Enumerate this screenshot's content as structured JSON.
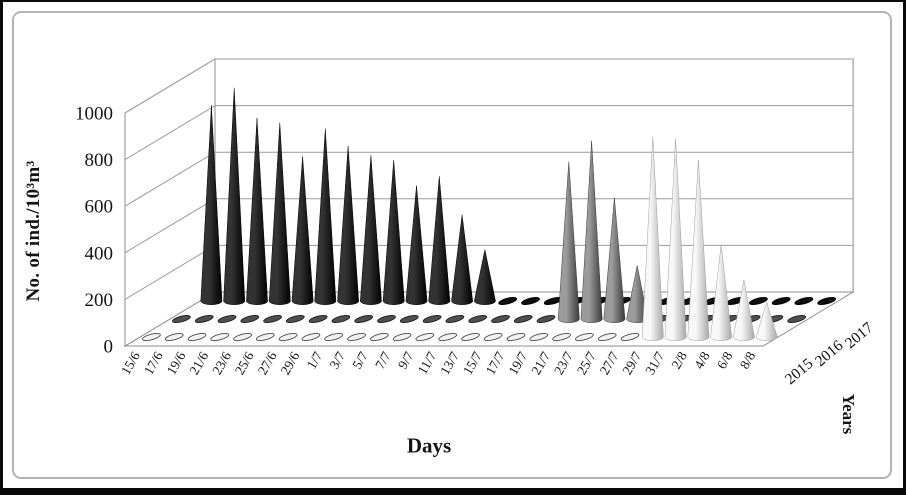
{
  "chart_data": {
    "type": "bar",
    "variant": "3d-cone-columns",
    "title": "",
    "xlabel": "Days",
    "ylabel": "No. of ind./10³m³",
    "zlabel": "Years",
    "categories": [
      "15/6",
      "17/6",
      "19/6",
      "21/6",
      "23/6",
      "25/6",
      "27/6",
      "29/6",
      "1/7",
      "3/7",
      "5/7",
      "7/7",
      "9/7",
      "11/7",
      "13/7",
      "15/7",
      "17/7",
      "19/7",
      "21/7",
      "23/7",
      "25/7",
      "27/7",
      "29/7",
      "31/7",
      "2/8",
      "4/8",
      "6/8",
      "8/8"
    ],
    "yticks": [
      0,
      200,
      400,
      600,
      800,
      1000
    ],
    "ylim": [
      0,
      1000
    ],
    "grid": true,
    "legend_position": "none",
    "depth_axis_labels_front_to_back": [
      "2015",
      "2016",
      "2017"
    ],
    "series": [
      {
        "name": "2015",
        "values": [
          0,
          0,
          0,
          0,
          0,
          0,
          0,
          0,
          0,
          0,
          0,
          0,
          0,
          0,
          0,
          0,
          0,
          0,
          0,
          0,
          0,
          0,
          860,
          850,
          760,
          395,
          245,
          150
        ],
        "cone_color_light": "#f8f8f8",
        "cone_color_dark": "#a8a8a8",
        "cone_outline": "#9e9e9e",
        "zero_marker_fill": "#f1f1f1",
        "zero_marker_stroke": "#4a4a4a"
      },
      {
        "name": "2016",
        "values": [
          0,
          0,
          0,
          0,
          0,
          0,
          0,
          0,
          0,
          0,
          0,
          0,
          0,
          0,
          0,
          0,
          0,
          675,
          765,
          520,
          230,
          0,
          0,
          0,
          0,
          0,
          0,
          0
        ],
        "cone_color_light": "#9c9c9c",
        "cone_color_dark": "#3a3a3a",
        "cone_outline": "#3a3a3a",
        "zero_marker_fill": "#4f4f4f",
        "zero_marker_stroke": "#1c1c1c"
      },
      {
        "name": "2017",
        "values": [
          840,
          915,
          785,
          765,
          620,
          740,
          665,
          625,
          605,
          495,
          535,
          370,
          220,
          0,
          0,
          0,
          0,
          0,
          0,
          0,
          0,
          0,
          0,
          0,
          0,
          0,
          0,
          0
        ],
        "cone_color_light": "#333333",
        "cone_color_dark": "#000000",
        "cone_outline": "#000000",
        "zero_marker_fill": "#0d0d0d",
        "zero_marker_stroke": "#000000"
      }
    ],
    "colors": {
      "gridline": "#9a9a9a",
      "wall_edge": "#8c8c8c",
      "wall_fill": "#ffffff",
      "tick_text": "#141414"
    }
  }
}
